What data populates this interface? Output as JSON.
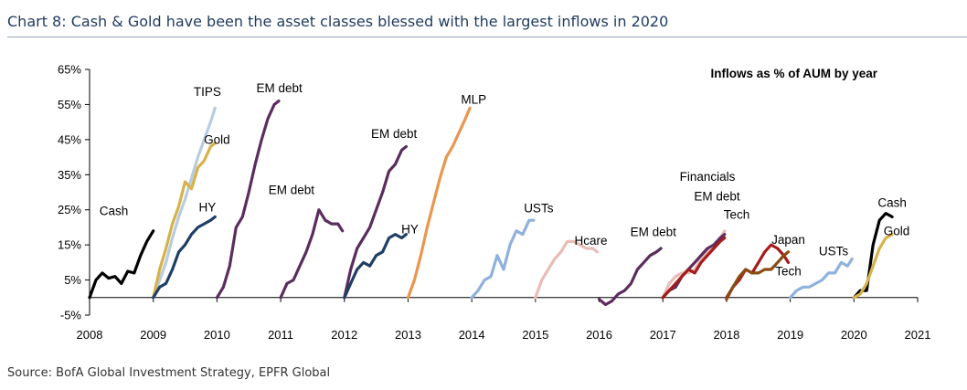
{
  "title": "Chart 8: Cash & Gold have been the asset classes blessed with the largest inflows in 2020",
  "source": "Source: BofA Global Investment Strategy, EPFR Global",
  "chart_data": {
    "type": "line",
    "annotation": "Inflows as % of AUM by year",
    "ylim": [
      -5,
      65
    ],
    "yticks": [
      -5,
      5,
      15,
      25,
      35,
      45,
      55,
      65
    ],
    "ytick_labels": [
      "-5%",
      "5%",
      "15%",
      "25%",
      "35%",
      "45%",
      "55%",
      "65%"
    ],
    "xlim": [
      2008,
      2021
    ],
    "xticks": [
      2008,
      2009,
      2010,
      2011,
      2012,
      2013,
      2014,
      2015,
      2016,
      2017,
      2018,
      2019,
      2020,
      2021
    ],
    "xtick_labels": [
      "2008",
      "2009",
      "2010",
      "2011",
      "2012",
      "2013",
      "2014",
      "2015",
      "2016",
      "2017",
      "2018",
      "2019",
      "2020",
      "2021"
    ],
    "series": [
      {
        "name": "Cash",
        "year": 2008,
        "color": "#000000",
        "x": [
          2008.0,
          2008.1,
          2008.2,
          2008.3,
          2008.4,
          2008.5,
          2008.6,
          2008.7,
          2008.8,
          2008.9,
          2009.0
        ],
        "y": [
          0,
          5,
          7,
          5.5,
          6,
          4,
          7.5,
          7,
          12,
          16,
          19
        ]
      },
      {
        "name": "TIPS",
        "year": 2009,
        "color": "#b7cce0",
        "x": [
          2009.0,
          2009.1,
          2009.2,
          2009.3,
          2009.4,
          2009.5,
          2009.6,
          2009.7,
          2009.8,
          2009.9,
          2009.97
        ],
        "y": [
          0,
          5,
          10,
          17,
          23,
          28,
          34,
          40,
          45,
          50,
          54
        ]
      },
      {
        "name": "Gold",
        "year": 2009,
        "color": "#d6b24a",
        "x": [
          2009.0,
          2009.1,
          2009.2,
          2009.3,
          2009.4,
          2009.5,
          2009.6,
          2009.7,
          2009.8,
          2009.9,
          2009.97
        ],
        "y": [
          0,
          8,
          14,
          21,
          26,
          33,
          31,
          37,
          39,
          43,
          44
        ]
      },
      {
        "name": "HY",
        "year": 2009,
        "color": "#1f3f66",
        "x": [
          2009.0,
          2009.1,
          2009.2,
          2009.3,
          2009.4,
          2009.5,
          2009.6,
          2009.7,
          2009.8,
          2009.9,
          2009.97
        ],
        "y": [
          0,
          3,
          4,
          8,
          13,
          15,
          18,
          20,
          21,
          22,
          23
        ]
      },
      {
        "name": "EM debt",
        "year": 2010,
        "color": "#5a2d5e",
        "x": [
          2010.0,
          2010.1,
          2010.2,
          2010.3,
          2010.4,
          2010.5,
          2010.6,
          2010.7,
          2010.8,
          2010.9,
          2010.97
        ],
        "y": [
          0,
          3,
          9,
          20,
          23,
          30,
          38,
          45,
          51,
          55,
          56
        ]
      },
      {
        "name": "EM debt",
        "year": 2011,
        "color": "#5a2d5e",
        "x": [
          2011.0,
          2011.1,
          2011.2,
          2011.3,
          2011.4,
          2011.5,
          2011.6,
          2011.7,
          2011.8,
          2011.9,
          2011.97
        ],
        "y": [
          0,
          4,
          5,
          9,
          13,
          18,
          25,
          22,
          21,
          21,
          19
        ]
      },
      {
        "name": "EM debt",
        "year": 2012,
        "color": "#5a2d5e",
        "x": [
          2012.0,
          2012.1,
          2012.2,
          2012.3,
          2012.4,
          2012.5,
          2012.6,
          2012.7,
          2012.8,
          2012.9,
          2012.97
        ],
        "y": [
          0,
          8,
          14,
          17,
          20,
          25,
          30,
          36,
          38,
          42,
          43
        ]
      },
      {
        "name": "HY",
        "year": 2012,
        "color": "#1f3f66",
        "x": [
          2012.0,
          2012.1,
          2012.2,
          2012.3,
          2012.4,
          2012.5,
          2012.6,
          2012.7,
          2012.8,
          2012.9,
          2012.97
        ],
        "y": [
          0,
          4,
          8,
          10,
          9,
          12,
          13,
          17,
          18,
          17,
          18
        ]
      },
      {
        "name": "MLP",
        "year": 2013,
        "color": "#e9964f",
        "x": [
          2013.0,
          2013.1,
          2013.2,
          2013.3,
          2013.4,
          2013.5,
          2013.6,
          2013.7,
          2013.8,
          2013.9,
          2013.97
        ],
        "y": [
          0,
          5,
          12,
          20,
          27,
          34,
          40,
          43,
          47,
          51,
          54
        ]
      },
      {
        "name": "USTs",
        "year": 2014,
        "color": "#8fb1dd",
        "x": [
          2014.0,
          2014.1,
          2014.2,
          2014.3,
          2014.4,
          2014.5,
          2014.6,
          2014.7,
          2014.8,
          2014.9,
          2014.97
        ],
        "y": [
          0,
          2,
          5,
          6,
          12,
          8,
          15,
          19,
          18,
          22,
          22
        ]
      },
      {
        "name": "Hcare",
        "year": 2015,
        "color": "#e8bdb5",
        "x": [
          2015.0,
          2015.1,
          2015.2,
          2015.3,
          2015.4,
          2015.5,
          2015.6,
          2015.7,
          2015.8,
          2015.9,
          2015.97
        ],
        "y": [
          0,
          5,
          8,
          11,
          13,
          16,
          16,
          15,
          14,
          14,
          13
        ]
      },
      {
        "name": "EM debt",
        "year": 2016,
        "color": "#5a2d5e",
        "x": [
          2016.0,
          2016.1,
          2016.2,
          2016.3,
          2016.4,
          2016.5,
          2016.6,
          2016.7,
          2016.8,
          2016.9,
          2016.97
        ],
        "y": [
          -0.5,
          -2,
          -1,
          1,
          2,
          4,
          8,
          10,
          12,
          13,
          14
        ]
      },
      {
        "name": "Financials",
        "year": 2017,
        "color": "#e8bdb5",
        "x": [
          2017.0,
          2017.1,
          2017.2,
          2017.3,
          2017.4,
          2017.5,
          2017.6,
          2017.7,
          2017.8,
          2017.9,
          2017.97
        ],
        "y": [
          0,
          4,
          6,
          7,
          7,
          8,
          11,
          13,
          14,
          17,
          19
        ]
      },
      {
        "name": "EM debt",
        "year": 2017,
        "color": "#5a2d5e",
        "x": [
          2017.0,
          2017.1,
          2017.2,
          2017.3,
          2017.4,
          2017.5,
          2017.6,
          2017.7,
          2017.8,
          2017.9,
          2017.97
        ],
        "y": [
          0,
          2,
          3,
          6,
          8,
          10,
          12,
          14,
          15,
          17,
          18
        ]
      },
      {
        "name": "Tech",
        "year": 2017,
        "color": "#a71b1b",
        "x": [
          2017.0,
          2017.1,
          2017.2,
          2017.3,
          2017.4,
          2017.5,
          2017.6,
          2017.7,
          2017.8,
          2017.9,
          2017.97
        ],
        "y": [
          0,
          2,
          4,
          6,
          8,
          7,
          10,
          12,
          14,
          16,
          17
        ]
      },
      {
        "name": "Tech",
        "year": 2018,
        "color": "#a71b1b",
        "x": [
          2018.0,
          2018.1,
          2018.2,
          2018.3,
          2018.4,
          2018.5,
          2018.6,
          2018.7,
          2018.8,
          2018.9,
          2018.97
        ],
        "y": [
          0,
          3,
          5,
          8,
          7,
          10,
          13,
          15,
          14,
          12,
          10
        ]
      },
      {
        "name": "Japan",
        "year": 2018,
        "color": "#8a4b14",
        "x": [
          2018.0,
          2018.1,
          2018.2,
          2018.3,
          2018.4,
          2018.5,
          2018.6,
          2018.7,
          2018.8,
          2018.9,
          2018.97
        ],
        "y": [
          -0.5,
          3,
          6,
          8,
          7,
          7,
          8,
          8,
          10,
          12,
          13
        ]
      },
      {
        "name": "USTs",
        "year": 2019,
        "color": "#8fb1dd",
        "x": [
          2019.0,
          2019.1,
          2019.2,
          2019.3,
          2019.4,
          2019.5,
          2019.6,
          2019.7,
          2019.8,
          2019.9,
          2019.97
        ],
        "y": [
          0,
          2,
          3,
          3,
          4,
          5,
          7,
          7,
          10,
          9,
          11
        ]
      },
      {
        "name": "Cash",
        "year": 2020,
        "color": "#000000",
        "x": [
          2020.0,
          2020.1,
          2020.2,
          2020.3,
          2020.4,
          2020.5,
          2020.6
        ],
        "y": [
          0,
          2,
          2,
          15,
          22,
          24,
          23
        ]
      },
      {
        "name": "Gold",
        "year": 2020,
        "color": "#d6b24a",
        "x": [
          2020.0,
          2020.1,
          2020.2,
          2020.3,
          2020.4,
          2020.5,
          2020.6
        ],
        "y": [
          0,
          1,
          4,
          9,
          14,
          17,
          18
        ]
      }
    ],
    "labels": [
      {
        "text": "Cash",
        "x": 2008.38,
        "y": 23.5
      },
      {
        "text": "TIPS",
        "x": 2009.85,
        "y": 57.5
      },
      {
        "text": "Gold",
        "x": 2010.0,
        "y": 43.8
      },
      {
        "text": "HY",
        "x": 2009.85,
        "y": 24.5
      },
      {
        "text": "EM debt",
        "x": 2010.98,
        "y": 58.5
      },
      {
        "text": "EM debt",
        "x": 2011.17,
        "y": 29.5
      },
      {
        "text": "EM debt",
        "x": 2012.78,
        "y": 45.5
      },
      {
        "text": "HY",
        "x": 2013.03,
        "y": 18.3
      },
      {
        "text": "MLP",
        "x": 2014.03,
        "y": 55.2
      },
      {
        "text": "USTs",
        "x": 2015.05,
        "y": 24.3
      },
      {
        "text": "Hcare",
        "x": 2015.87,
        "y": 15.0
      },
      {
        "text": "EM debt",
        "x": 2016.85,
        "y": 17.5
      },
      {
        "text": "Financials",
        "x": 2017.7,
        "y": 33.3
      },
      {
        "text": "EM debt",
        "x": 2017.85,
        "y": 27.7
      },
      {
        "text": "Tech",
        "x": 2018.16,
        "y": 22.5
      },
      {
        "text": "Japan",
        "x": 2018.97,
        "y": 15.3
      },
      {
        "text": "Tech",
        "x": 2018.97,
        "y": 6.3
      },
      {
        "text": "USTs",
        "x": 2019.68,
        "y": 12.0
      },
      {
        "text": "Cash",
        "x": 2020.6,
        "y": 25.8
      },
      {
        "text": "Gold",
        "x": 2020.67,
        "y": 17.8
      }
    ]
  }
}
